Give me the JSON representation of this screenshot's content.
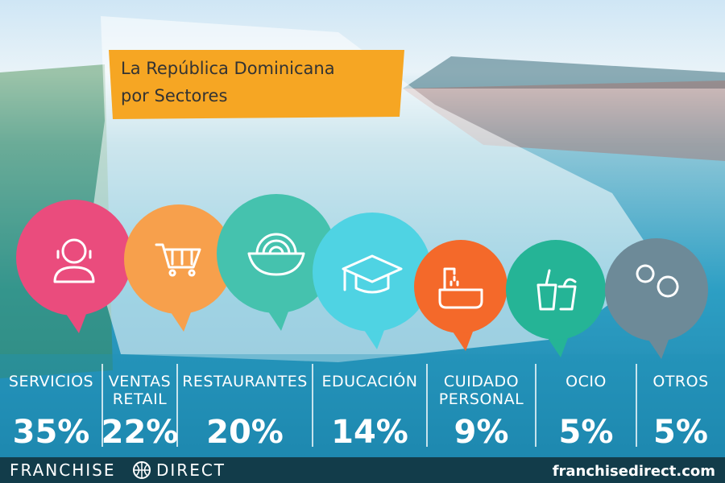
{
  "header": {
    "title_lines": [
      "La República Dominicana",
      "por Sectores"
    ]
  },
  "sectors": [
    {
      "label_lines": [
        "SERVICIOS"
      ],
      "value": "35%"
    },
    {
      "label_lines": [
        "VENTAS",
        "RETAIL"
      ],
      "value": "22%"
    },
    {
      "label_lines": [
        "RESTAURANTES"
      ],
      "value": "20%"
    },
    {
      "label_lines": [
        "EDUCACIÓN"
      ],
      "value": "14%"
    },
    {
      "label_lines": [
        "CUIDADO",
        "PERSONAL"
      ],
      "value": "9%"
    },
    {
      "label_lines": [
        "OCIO"
      ],
      "value": "5%"
    },
    {
      "label_lines": [
        "OTROS"
      ],
      "value": "5%"
    }
  ],
  "footer": {
    "brand_left": "FRANCHISE",
    "brand_right": "DIRECT",
    "url": "franchisedirect.com"
  }
}
